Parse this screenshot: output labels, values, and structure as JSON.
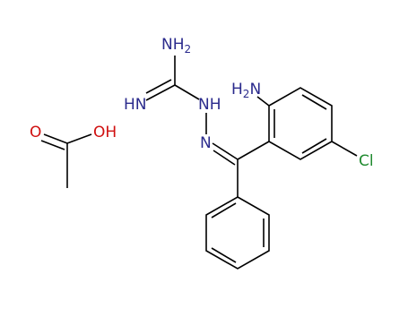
{
  "atoms": [
    {
      "main": "NH",
      "sub": "2"
    },
    {
      "main": "HN"
    },
    {
      "main": "NH"
    },
    {
      "main": "N"
    },
    {
      "main": "H",
      "sub": "2",
      "tail": "N"
    },
    {
      "main": "Cl"
    },
    {
      "main": "O"
    },
    {
      "main": "OH"
    }
  ]
}
